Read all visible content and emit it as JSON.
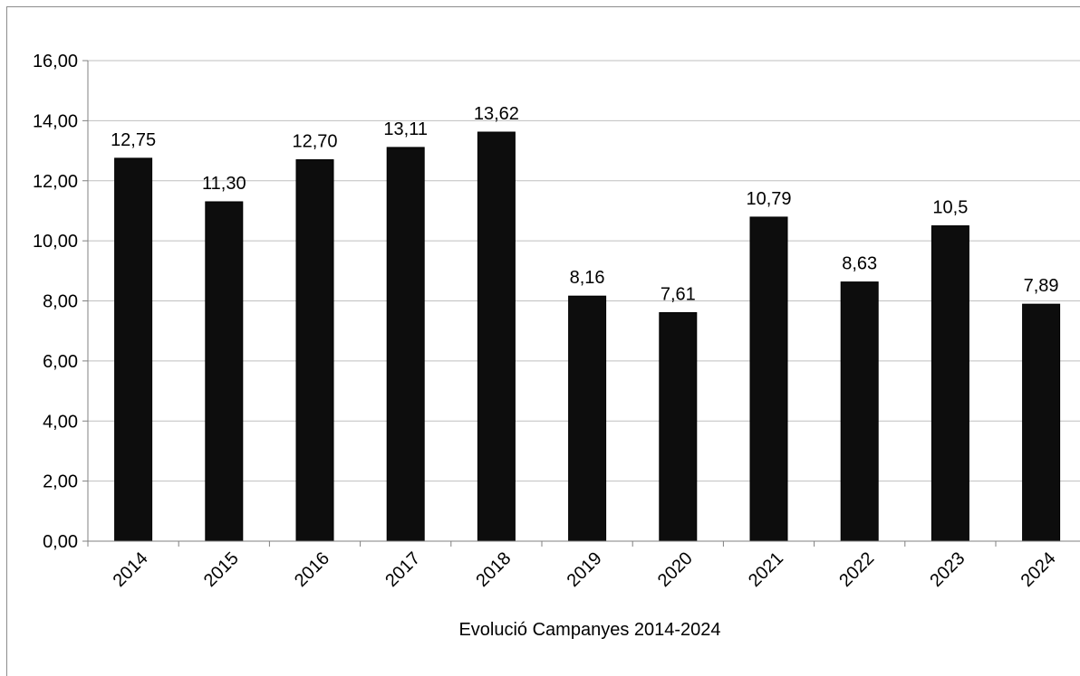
{
  "chart_data": {
    "type": "bar",
    "title": "",
    "xlabel": "Evolució Campanyes 2014-2024",
    "ylabel": "",
    "categories": [
      "2014",
      "2015",
      "2016",
      "2017",
      "2018",
      "2019",
      "2020",
      "2021",
      "2022",
      "2023",
      "2024"
    ],
    "values": [
      12.75,
      11.3,
      12.7,
      13.11,
      13.62,
      8.16,
      7.61,
      10.79,
      8.63,
      10.5,
      7.89
    ],
    "data_labels": [
      "12,75",
      "11,30",
      "12,70",
      "13,11",
      "13,62",
      "8,16",
      "7,61",
      "10,79",
      "8,63",
      "10,5",
      "7,89"
    ],
    "ylim": [
      0,
      16
    ],
    "yticks": [
      0,
      2,
      4,
      6,
      8,
      10,
      12,
      14,
      16
    ],
    "ytick_labels": [
      "0,00",
      "2,00",
      "4,00",
      "6,00",
      "8,00",
      "10,00",
      "12,00",
      "14,00",
      "16,00"
    ],
    "grid": true,
    "legend": "none",
    "colors": {
      "bar_fill": "#0d0d0d",
      "gridline": "#bfbfbf",
      "axis": "#808080",
      "text": "#000000"
    }
  }
}
